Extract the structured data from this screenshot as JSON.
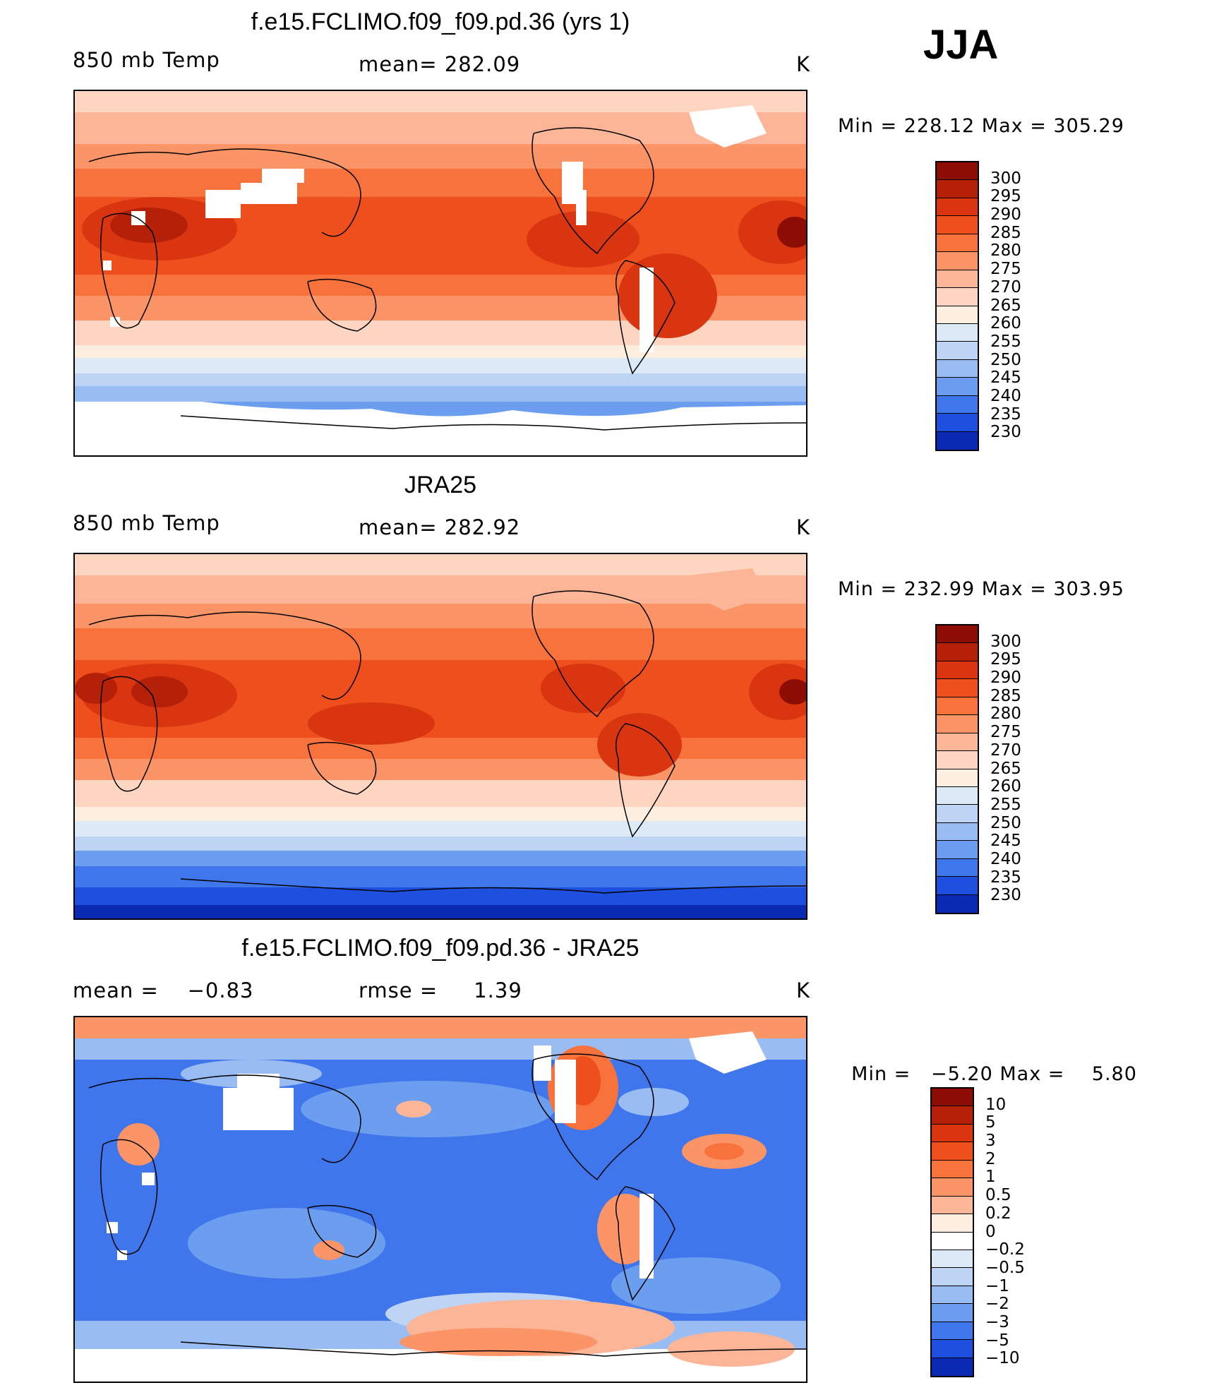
{
  "season": "JJA",
  "panels": [
    {
      "title": "f.e15.FCLIMO.f09_f09.pd.36 (yrs 1)",
      "left_label": "850 mb Temp",
      "center_label": "mean= 282.09",
      "units": "K",
      "min_label": "Min",
      "min_value": "228.12",
      "max_label": "Max",
      "max_value": "305.29",
      "colorbar": {
        "levels": [
          "300",
          "295",
          "290",
          "285",
          "280",
          "275",
          "270",
          "265",
          "260",
          "255",
          "250",
          "245",
          "240",
          "235",
          "230"
        ],
        "colors": [
          "#8c0d04",
          "#b42008",
          "#d83510",
          "#ee4f1c",
          "#f8733b",
          "#fb9467",
          "#fcb596",
          "#fdd5c0",
          "#fdeedf",
          "#dceaf8",
          "#bdd4f5",
          "#99bcf3",
          "#6c9ef0",
          "#3f76ec",
          "#1f4fde",
          "#0a2ab4"
        ]
      }
    },
    {
      "title": "JRA25",
      "left_label": "850 mb Temp",
      "center_label": "mean= 282.92",
      "units": "K",
      "min_label": "Min",
      "min_value": "232.99",
      "max_label": "Max",
      "max_value": "303.95",
      "colorbar": {
        "levels": [
          "300",
          "295",
          "290",
          "285",
          "280",
          "275",
          "270",
          "265",
          "260",
          "255",
          "250",
          "245",
          "240",
          "235",
          "230"
        ],
        "colors": [
          "#8c0d04",
          "#b42008",
          "#d83510",
          "#ee4f1c",
          "#f8733b",
          "#fb9467",
          "#fcb596",
          "#fdd5c0",
          "#fdeedf",
          "#dceaf8",
          "#bdd4f5",
          "#99bcf3",
          "#6c9ef0",
          "#3f76ec",
          "#1f4fde",
          "#0a2ab4"
        ]
      }
    },
    {
      "title": "f.e15.FCLIMO.f09_f09.pd.36 - JRA25",
      "left_label": "mean =    −0.83",
      "center_label": "rmse =     1.39",
      "units": "K",
      "min_label": "Min",
      "min_value": "−5.20",
      "max_label": "Max",
      "max_value": "5.80",
      "colorbar": {
        "levels": [
          "10",
          "5",
          "3",
          "2",
          "1",
          "0.5",
          "0.2",
          "0",
          "−0.2",
          "−0.5",
          "−1",
          "−2",
          "−3",
          "−5",
          "−10"
        ],
        "colors": [
          "#8c0d04",
          "#b42008",
          "#d83510",
          "#ee4f1c",
          "#f8733b",
          "#fb9467",
          "#fcb596",
          "#fdeedf",
          "#ffffff",
          "#dceaf8",
          "#bdd4f5",
          "#99bcf3",
          "#6c9ef0",
          "#3f76ec",
          "#1f4fde",
          "#0a2ab4"
        ]
      }
    }
  ]
}
